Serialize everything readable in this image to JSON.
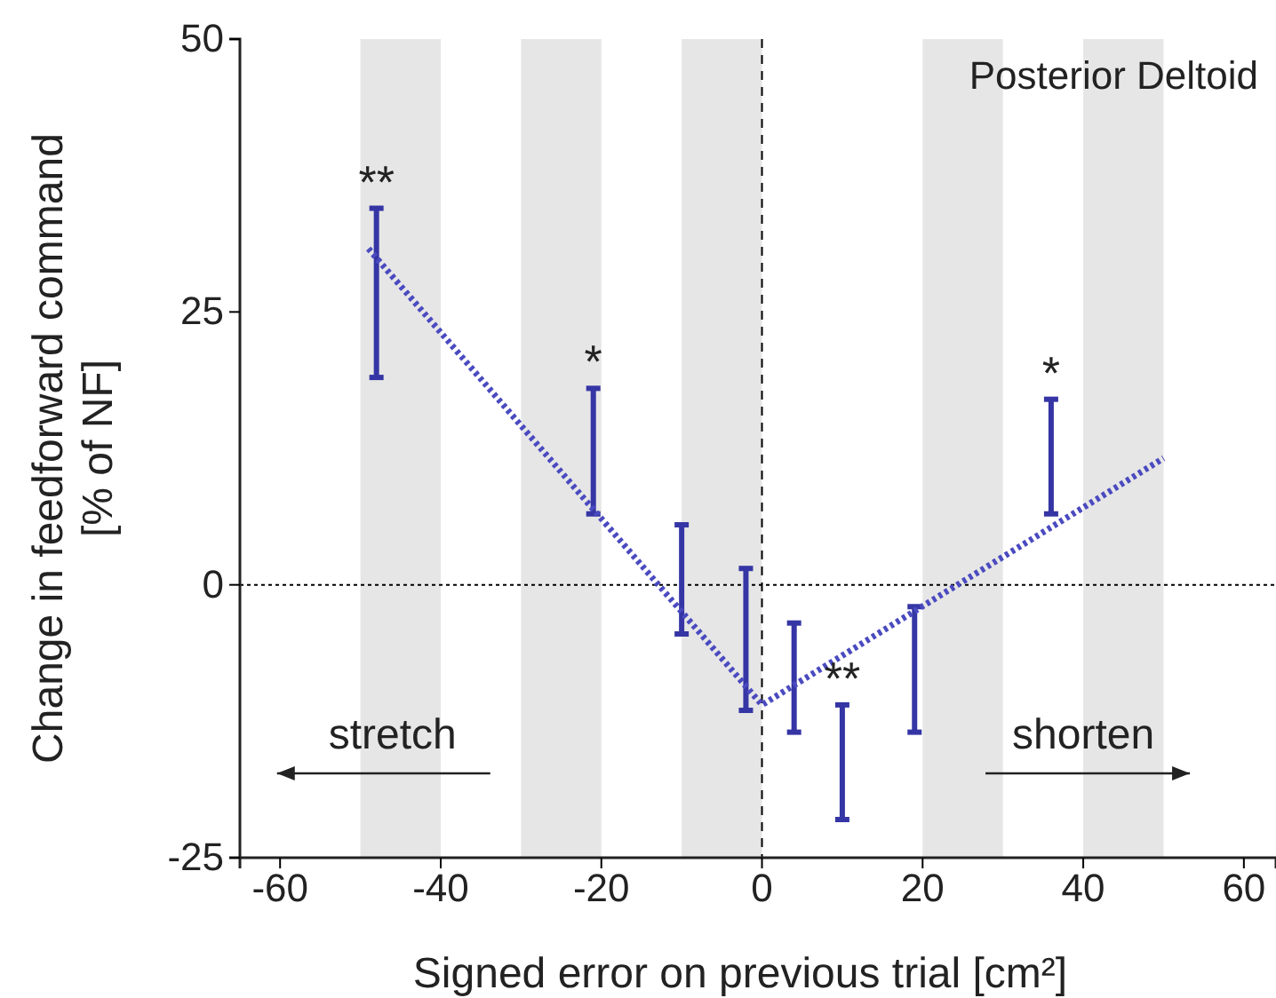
{
  "chart_data": {
    "type": "bar",
    "title": "Posterior Deltoid",
    "xlabel": "Signed error on previous trial [cm²]",
    "ylabel": "Change in feedforward command\n[% of NF]",
    "xlim": [
      -65,
      64
    ],
    "ylim": [
      -25,
      50
    ],
    "xticks": [
      -60,
      -40,
      -20,
      0,
      20,
      40,
      60
    ],
    "yticks": [
      -25,
      0,
      25,
      50
    ],
    "grid": false,
    "series": [
      {
        "color": "#3535a5",
        "x": [
          -48,
          -21,
          -10,
          -2,
          4,
          10,
          19,
          36
        ],
        "base": [
          19,
          6.5,
          -4.5,
          -11.5,
          -13.5,
          -21.5,
          -13.5,
          6.5
        ],
        "values": [
          15.5,
          11.5,
          10,
          13,
          10,
          10.5,
          11.5,
          10.5
        ]
      },
      {
        "type": "line",
        "color": "#4a4ac0",
        "marker": "none",
        "line_style": "dotted",
        "x": [
          -49,
          0,
          50
        ],
        "values": [
          30.8,
          -11,
          11.6
        ]
      }
    ],
    "ref_lines": [
      {
        "axis": "x",
        "value": 0,
        "color": "#000000",
        "line_style": "dashed"
      },
      {
        "axis": "y",
        "value": 0,
        "color": "#000000",
        "line_style": "dotted"
      }
    ],
    "bands": [
      {
        "axis": "x",
        "from": -50,
        "to": -40,
        "color": "#e6e6e6"
      },
      {
        "axis": "x",
        "from": -30,
        "to": -20,
        "color": "#e6e6e6"
      },
      {
        "axis": "x",
        "from": -10,
        "to": 0,
        "color": "#e6e6e6"
      },
      {
        "axis": "x",
        "from": 20,
        "to": 30,
        "color": "#e6e6e6"
      },
      {
        "axis": "x",
        "from": 40,
        "to": 50,
        "color": "#e6e6e6"
      }
    ],
    "annotations": [
      {
        "text": "**",
        "x": -48,
        "y": 34.5
      },
      {
        "text": "*",
        "x": -21,
        "y": 18
      },
      {
        "text": "**",
        "x": 10,
        "y": -11
      },
      {
        "text": "*",
        "x": 36,
        "y": 17
      },
      "stretch",
      "shorten"
    ]
  }
}
